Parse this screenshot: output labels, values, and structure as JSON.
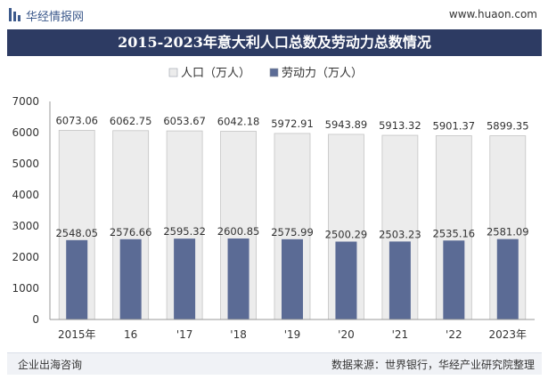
{
  "header": {
    "brand": "华经情报网",
    "site": "www.huaon.com"
  },
  "chart_data": {
    "type": "bar",
    "title": "2015-2023年意大利人口总数及劳动力总数情况",
    "categories": [
      "2015年",
      "16",
      "'17",
      "'18",
      "'19",
      "'20",
      "'21",
      "'22",
      "2023年"
    ],
    "series": [
      {
        "name": "人口（万人）",
        "color": "#ececec",
        "values": [
          6073.06,
          6062.75,
          6053.67,
          6042.18,
          5972.91,
          5943.89,
          5913.32,
          5901.37,
          5899.35
        ]
      },
      {
        "name": "劳动力（万人）",
        "color": "#5b6b95",
        "values": [
          2548.05,
          2576.66,
          2595.32,
          2600.85,
          2575.99,
          2500.29,
          2503.23,
          2535.16,
          2581.09
        ]
      }
    ],
    "ylim": [
      0,
      7000
    ],
    "yticks": [
      0,
      1000,
      2000,
      3000,
      4000,
      5000,
      6000,
      7000
    ],
    "legend": "top-center",
    "xlabel": "",
    "ylabel": ""
  },
  "footer": {
    "left": "企业出海咨询",
    "right": "数据来源：世界银行，华经产业研究院整理"
  }
}
